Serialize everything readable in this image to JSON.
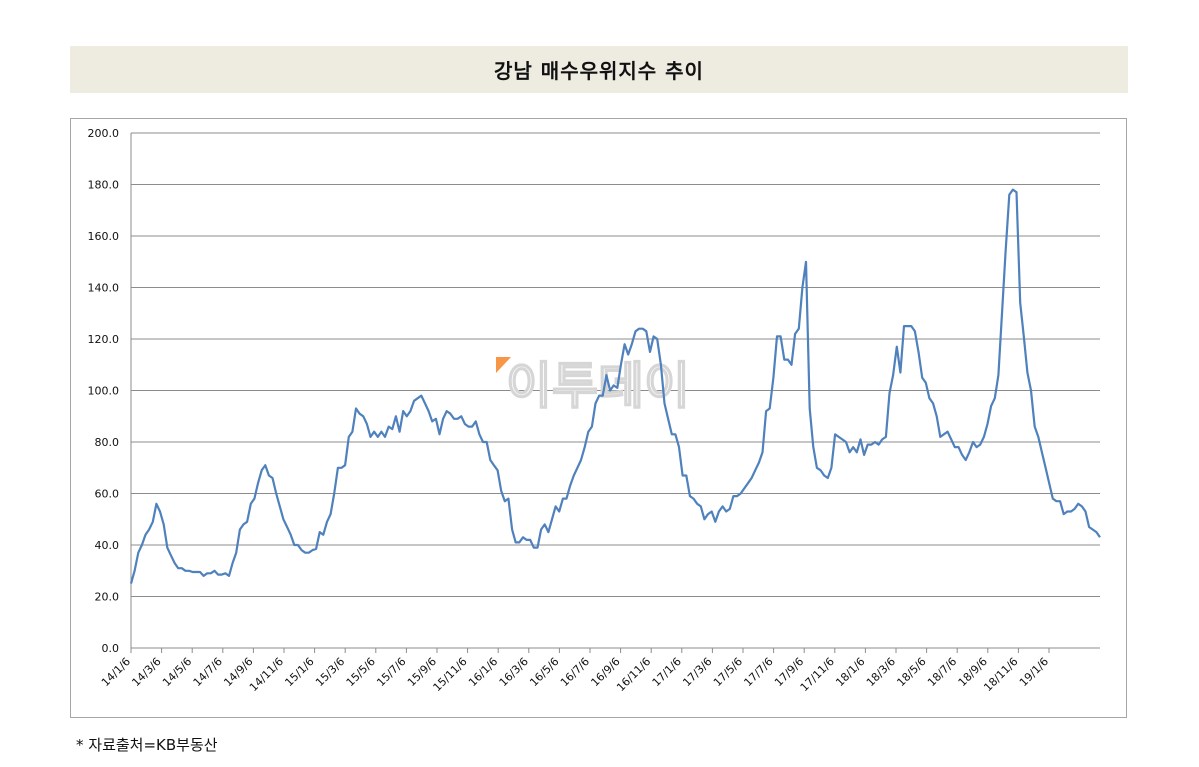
{
  "title": "강남 매수우위지수 추이",
  "source_note": "* 자료출처=KB부동산",
  "watermark": "이투데이",
  "colors": {
    "line": "#4f81bd",
    "grid": "#8c8c8c",
    "title_bg": "#eeece1",
    "watermark_accent": "#f79646"
  },
  "chart_data": {
    "type": "line",
    "title": "강남 매수우위지수 추이",
    "xlabel": "",
    "ylabel": "",
    "ylim": [
      0,
      200
    ],
    "yticks": [
      "0.0",
      "20.0",
      "40.0",
      "60.0",
      "80.0",
      "100.0",
      "120.0",
      "140.0",
      "160.0",
      "180.0",
      "200.0"
    ],
    "x_tick_labels": [
      "14/1/6",
      "14/3/6",
      "14/5/6",
      "14/7/6",
      "14/9/6",
      "14/11/6",
      "15/1/6",
      "15/3/6",
      "15/5/6",
      "15/7/6",
      "15/9/6",
      "15/11/6",
      "16/1/6",
      "16/3/6",
      "16/5/6",
      "16/7/6",
      "16/9/6",
      "16/11/6",
      "17/1/6",
      "17/3/6",
      "17/5/6",
      "17/7/6",
      "17/9/6",
      "17/11/6",
      "18/1/6",
      "18/3/6",
      "18/5/6",
      "18/7/6",
      "18/9/6",
      "18/11/6",
      "19/1/6"
    ],
    "grid": true,
    "legend": "none",
    "series": [
      {
        "values": [
          25,
          30,
          37,
          40,
          44,
          46,
          49,
          56,
          53,
          48,
          39,
          36,
          33,
          31,
          31,
          30,
          30,
          29.5,
          29.5,
          29.5,
          28,
          29,
          29,
          30,
          28.5,
          28.5,
          29,
          28,
          33,
          37,
          46,
          48,
          49,
          56,
          58,
          64,
          69,
          71,
          67,
          66,
          60,
          55,
          50,
          47,
          44,
          40,
          40,
          38,
          37,
          37,
          38,
          38.5,
          45,
          44,
          49,
          52,
          60,
          70,
          70,
          71,
          82,
          84,
          93,
          91,
          90,
          87,
          82,
          84,
          82,
          84,
          82,
          86,
          85,
          90,
          84,
          92,
          90,
          92,
          96,
          97,
          98,
          95,
          92,
          88,
          89,
          83,
          89,
          92,
          91,
          89,
          89,
          90,
          87,
          86,
          86,
          88,
          83,
          80,
          80,
          73,
          71,
          69,
          61,
          57,
          58,
          46,
          41,
          41,
          43,
          42,
          42,
          39,
          39,
          46,
          48,
          45,
          50,
          55,
          53,
          58,
          58,
          63,
          67,
          70,
          73,
          78,
          84,
          86,
          95,
          98,
          98,
          106,
          100,
          102,
          101,
          110,
          118,
          114,
          118,
          123,
          124,
          124,
          123,
          115,
          121,
          120,
          110,
          95,
          89,
          83,
          83,
          78,
          67,
          67,
          59,
          58,
          56,
          55,
          50,
          52,
          53,
          49,
          53,
          55,
          53,
          54,
          59,
          59,
          60,
          62,
          64,
          66,
          69,
          72,
          76,
          92,
          93,
          105,
          121,
          121,
          112,
          112,
          110,
          122,
          124,
          140,
          150,
          93,
          78,
          70,
          69,
          67,
          66,
          70,
          83,
          82,
          81,
          80,
          76,
          78,
          76,
          81,
          75,
          79,
          79,
          80,
          79,
          81,
          82,
          99,
          106,
          117,
          107,
          125,
          125,
          125,
          123,
          115,
          105,
          103,
          97,
          95,
          90,
          82,
          83,
          84,
          81,
          78,
          78,
          75,
          73,
          76,
          80,
          78,
          79,
          82,
          87,
          94,
          97,
          106,
          130,
          154,
          176,
          178,
          177,
          134,
          121,
          107,
          100,
          86,
          82,
          76,
          70,
          64,
          58,
          57,
          57,
          52,
          53,
          53,
          54,
          56,
          55,
          53,
          47,
          46,
          45,
          43
        ]
      }
    ]
  }
}
